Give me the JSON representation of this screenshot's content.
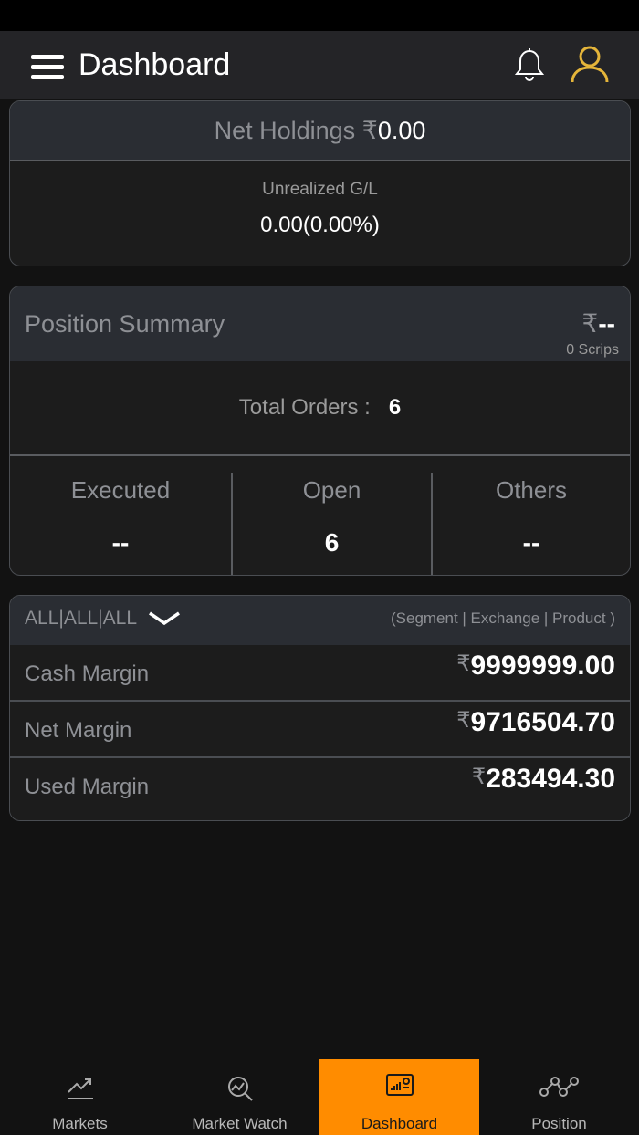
{
  "header": {
    "title": "Dashboard",
    "menu_icon": "hamburger-icon",
    "bell_icon": "bell-icon",
    "user_icon": "user-icon",
    "accent": "#e5b53a"
  },
  "net_holdings": {
    "label": "Net Holdings ₹",
    "value": "0.00",
    "unrealized_label": "Unrealized G/L",
    "unrealized_value": "0.00(0.00%)"
  },
  "position_summary": {
    "title": "Position Summary",
    "currency": "₹",
    "value": "--",
    "scrips": "0 Scrips",
    "total_orders_label": "Total Orders :",
    "total_orders_value": "6",
    "columns": [
      {
        "label": "Executed",
        "value": "--"
      },
      {
        "label": "Open",
        "value": "6"
      },
      {
        "label": "Others",
        "value": "--"
      }
    ]
  },
  "margin": {
    "selector": "ALL|ALL|ALL",
    "hint": "(Segment | Exchange | Product )",
    "currency": "₹",
    "rows": [
      {
        "label": "Cash Margin",
        "value": "9999999.00"
      },
      {
        "label": "Net Margin",
        "value": "9716504.70"
      },
      {
        "label": "Used Margin",
        "value": "283494.30"
      }
    ]
  },
  "nav": {
    "active_color": "#ff8c00",
    "items": [
      {
        "label": "Markets",
        "icon": "trend-up-icon"
      },
      {
        "label": "Market Watch",
        "icon": "market-watch-icon"
      },
      {
        "label": "Dashboard",
        "icon": "dashboard-icon",
        "active": true
      },
      {
        "label": "Position",
        "icon": "position-icon"
      }
    ]
  }
}
